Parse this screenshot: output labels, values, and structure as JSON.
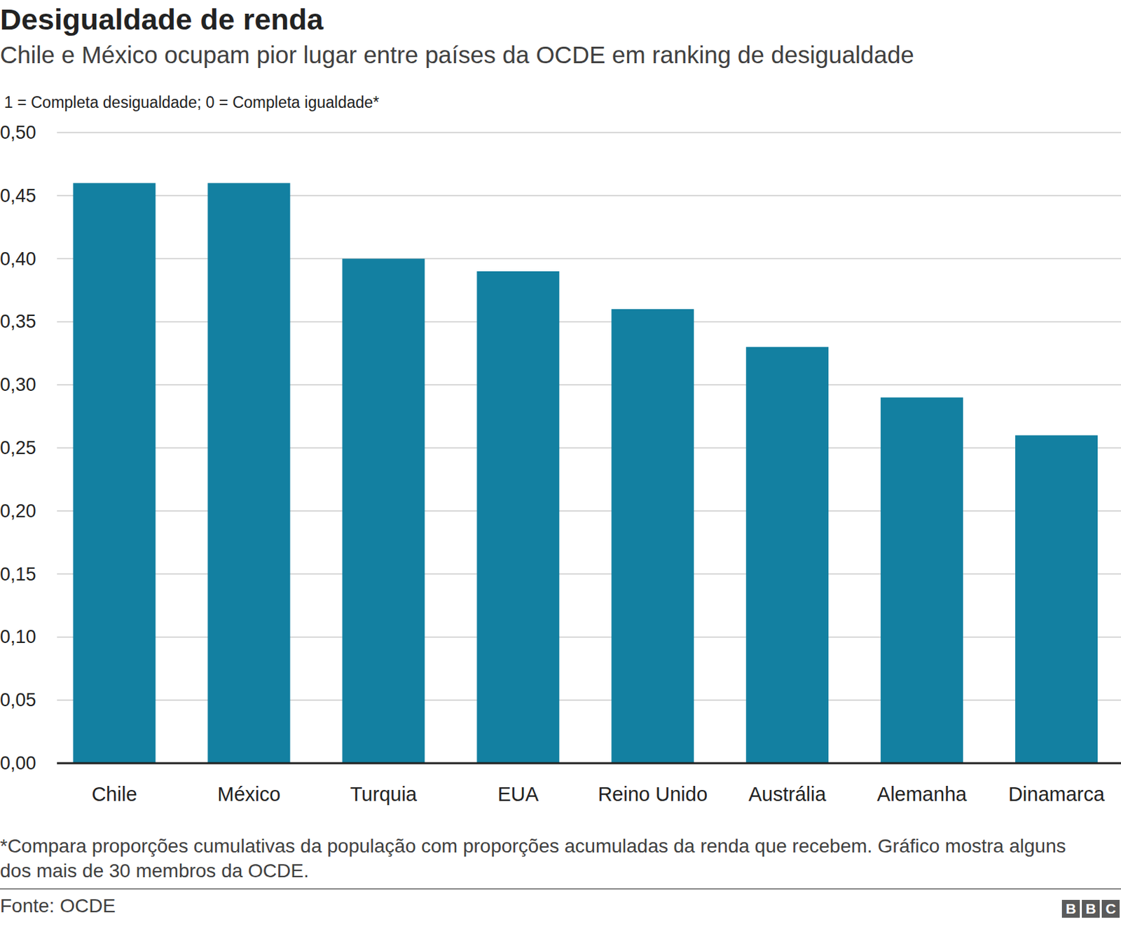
{
  "chart_data": {
    "type": "bar",
    "title": "Desigualdade de renda",
    "subtitle": "Chile e México ocupam pior lugar entre países da OCDE em ranking de desigualdade",
    "note": "1 = Completa desigualdade; 0 = Completa igualdade*",
    "footnote": "*Compara proporções cumulativas da população com proporções acumuladas da renda que recebem. Gráfico mostra alguns dos mais de 30 membros da OCDE.",
    "source": "Fonte: OCDE",
    "logo": "BBC",
    "categories": [
      "Chile",
      "México",
      "Turquia",
      "EUA",
      "Reino Unido",
      "Austrália",
      "Alemanha",
      "Dinamarca"
    ],
    "values": [
      0.46,
      0.46,
      0.4,
      0.39,
      0.36,
      0.33,
      0.29,
      0.26
    ],
    "color": "#1380a1",
    "ylim": [
      0,
      0.5
    ],
    "yticks": [
      {
        "value": 0,
        "label": "0,00"
      },
      {
        "value": 0.05,
        "label": "0,05"
      },
      {
        "value": 0.1,
        "label": "0,10"
      },
      {
        "value": 0.15,
        "label": "0,15"
      },
      {
        "value": 0.2,
        "label": "0,20"
      },
      {
        "value": 0.25,
        "label": "0,25"
      },
      {
        "value": 0.3,
        "label": "0,30"
      },
      {
        "value": 0.35,
        "label": "0,35"
      },
      {
        "value": 0.4,
        "label": "0,40"
      },
      {
        "value": 0.45,
        "label": "0,45"
      },
      {
        "value": 0.5,
        "label": "0,50"
      }
    ],
    "grid": true
  }
}
